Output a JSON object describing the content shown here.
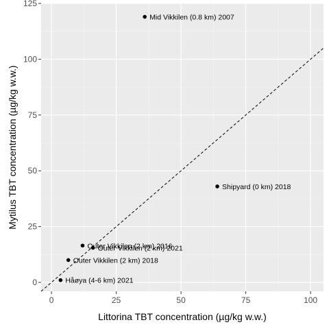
{
  "chart_data": {
    "type": "scatter",
    "xlabel": "Littorina TBT concentration (µg/kg w.w.)",
    "ylabel": "Mytilus TBT concentration (µg/kg w.w.)",
    "xlim": [
      -4,
      105
    ],
    "ylim": [
      -4,
      125
    ],
    "xticks": [
      0,
      25,
      50,
      75,
      100
    ],
    "yticks": [
      0,
      25,
      50,
      75,
      100,
      125
    ],
    "xtick_labels": [
      "0",
      "25",
      "50",
      "75",
      "100"
    ],
    "ytick_labels": [
      "0",
      "25",
      "50",
      "75",
      "100",
      "125"
    ],
    "grid": true,
    "reference_line": {
      "type": "identity",
      "style": "dashed",
      "color": "#000000"
    },
    "points": [
      {
        "label": "Mid Vikkilen (0.8 km) 2007",
        "x": 36.0,
        "y": 119.0
      },
      {
        "label": "Shipyard (0 km) 2018",
        "x": 64.0,
        "y": 43.0
      },
      {
        "label": "Outer Vikkilen (2 km) 2016",
        "x": 12.0,
        "y": 16.5
      },
      {
        "label": "Outer Vikkilen (2 km) 2021",
        "x": 16.0,
        "y": 15.5
      },
      {
        "label": "Outer Vikkilen (2 km) 2018",
        "x": 6.5,
        "y": 10.0
      },
      {
        "label": "Håøya (4-6 km) 2021",
        "x": 3.5,
        "y": 1.0
      }
    ]
  },
  "colors": {
    "panel_background": "#ebebeb",
    "grid_major": "#ffffff",
    "grid_minor": "#f5f5f5",
    "point": "#000000",
    "tick_text": "#4d4d4d"
  }
}
